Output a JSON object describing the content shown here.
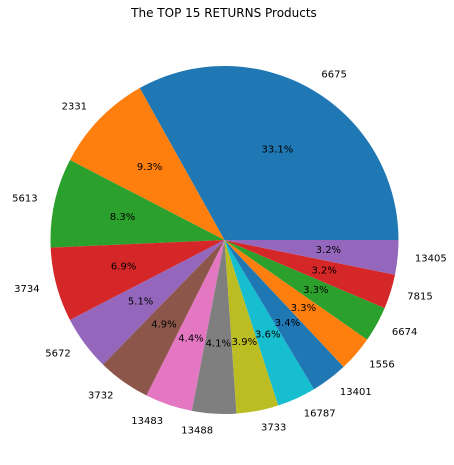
{
  "chart_data": {
    "type": "pie",
    "title": "The TOP 15 RETURNS Products",
    "labels": [
      "6675",
      "2331",
      "5613",
      "3734",
      "5672",
      "3732",
      "13483",
      "13488",
      "3733",
      "16787",
      "13401",
      "1556",
      "6674",
      "7815",
      "13405"
    ],
    "values": [
      33.1,
      9.3,
      8.3,
      6.9,
      5.1,
      4.9,
      4.4,
      4.1,
      3.9,
      3.6,
      3.4,
      3.3,
      3.3,
      3.2,
      3.2
    ],
    "percent_labels": [
      "33.1%",
      "9.3%",
      "8.3%",
      "6.9%",
      "5.1%",
      "4.9%",
      "4.4%",
      "4.1%",
      "3.9%",
      "3.6%",
      "3.4%",
      "3.3%",
      "3.3%",
      "3.2%",
      "3.2%"
    ],
    "colors": [
      "#1f77b4",
      "#ff7f0e",
      "#2ca02c",
      "#d62728",
      "#9467bd",
      "#8c564b",
      "#e377c2",
      "#7f7f7f",
      "#bcbd22",
      "#17becf",
      "#1f77b4",
      "#ff7f0e",
      "#2ca02c",
      "#d62728",
      "#9467bd"
    ],
    "start_angle_deg": 0,
    "direction": "counterclockwise",
    "legend": "none"
  }
}
